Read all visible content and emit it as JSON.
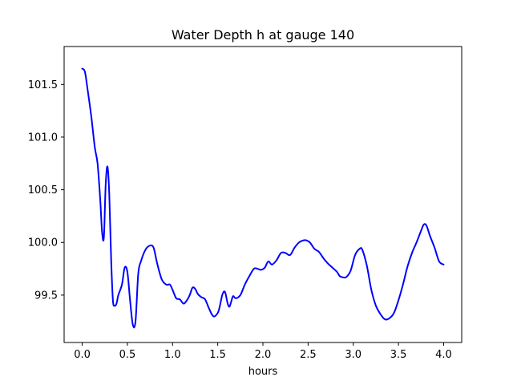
{
  "chart_data": {
    "type": "line",
    "title": "Water Depth h at gauge 140",
    "xlabel": "hours",
    "ylabel": "",
    "xlim": [
      -0.2,
      4.2
    ],
    "ylim": [
      99.05,
      101.86
    ],
    "xticks": [
      0.0,
      0.5,
      1.0,
      1.5,
      2.0,
      2.5,
      3.0,
      3.5,
      4.0
    ],
    "xtick_labels": [
      "0.0",
      "0.5",
      "1.0",
      "1.5",
      "2.0",
      "2.5",
      "3.0",
      "3.5",
      "4.0"
    ],
    "yticks": [
      99.5,
      100.0,
      100.5,
      101.0,
      101.5
    ],
    "ytick_labels": [
      "99.5",
      "100.0",
      "100.5",
      "101.0",
      "101.5"
    ],
    "grid": false,
    "series": [
      {
        "color": "#0000ff",
        "x": [
          0.0,
          0.03,
          0.06,
          0.1,
          0.14,
          0.17,
          0.2,
          0.22,
          0.24,
          0.26,
          0.28,
          0.3,
          0.32,
          0.34,
          0.36,
          0.38,
          0.4,
          0.44,
          0.47,
          0.5,
          0.53,
          0.56,
          0.59,
          0.62,
          0.65,
          0.7,
          0.75,
          0.79,
          0.83,
          0.88,
          0.93,
          0.97,
          1.0,
          1.04,
          1.08,
          1.12,
          1.15,
          1.19,
          1.22,
          1.25,
          1.28,
          1.32,
          1.36,
          1.4,
          1.44,
          1.47,
          1.51,
          1.55,
          1.58,
          1.61,
          1.63,
          1.65,
          1.67,
          1.7,
          1.75,
          1.8,
          1.85,
          1.9,
          1.94,
          1.98,
          2.02,
          2.06,
          2.1,
          2.15,
          2.2,
          2.25,
          2.3,
          2.35,
          2.4,
          2.45,
          2.48,
          2.52,
          2.57,
          2.62,
          2.67,
          2.72,
          2.77,
          2.82,
          2.85,
          2.88,
          2.92,
          2.97,
          3.02,
          3.07,
          3.1,
          3.15,
          3.2,
          3.25,
          3.3,
          3.35,
          3.4,
          3.45,
          3.5,
          3.55,
          3.6,
          3.65,
          3.7,
          3.75,
          3.78,
          3.81,
          3.85,
          3.9,
          3.95,
          4.0
        ],
        "y": [
          101.65,
          101.62,
          101.45,
          101.2,
          100.9,
          100.75,
          100.4,
          100.1,
          100.05,
          100.55,
          100.72,
          100.45,
          99.85,
          99.45,
          99.4,
          99.42,
          99.5,
          99.6,
          99.76,
          99.72,
          99.45,
          99.22,
          99.25,
          99.7,
          99.82,
          99.93,
          99.97,
          99.95,
          99.8,
          99.65,
          99.6,
          99.6,
          99.55,
          99.47,
          99.46,
          99.42,
          99.44,
          99.5,
          99.57,
          99.56,
          99.51,
          99.48,
          99.46,
          99.38,
          99.31,
          99.3,
          99.35,
          99.5,
          99.53,
          99.42,
          99.39,
          99.44,
          99.49,
          99.47,
          99.5,
          99.6,
          99.68,
          99.75,
          99.75,
          99.74,
          99.76,
          99.82,
          99.79,
          99.83,
          99.9,
          99.9,
          99.88,
          99.95,
          100.0,
          100.02,
          100.02,
          100.0,
          99.94,
          99.91,
          99.85,
          99.8,
          99.76,
          99.72,
          99.68,
          99.67,
          99.67,
          99.73,
          99.88,
          99.94,
          99.93,
          99.78,
          99.55,
          99.4,
          99.32,
          99.27,
          99.28,
          99.33,
          99.45,
          99.6,
          99.77,
          99.9,
          100.0,
          100.11,
          100.17,
          100.16,
          100.06,
          99.95,
          99.82,
          99.79
        ]
      }
    ]
  }
}
